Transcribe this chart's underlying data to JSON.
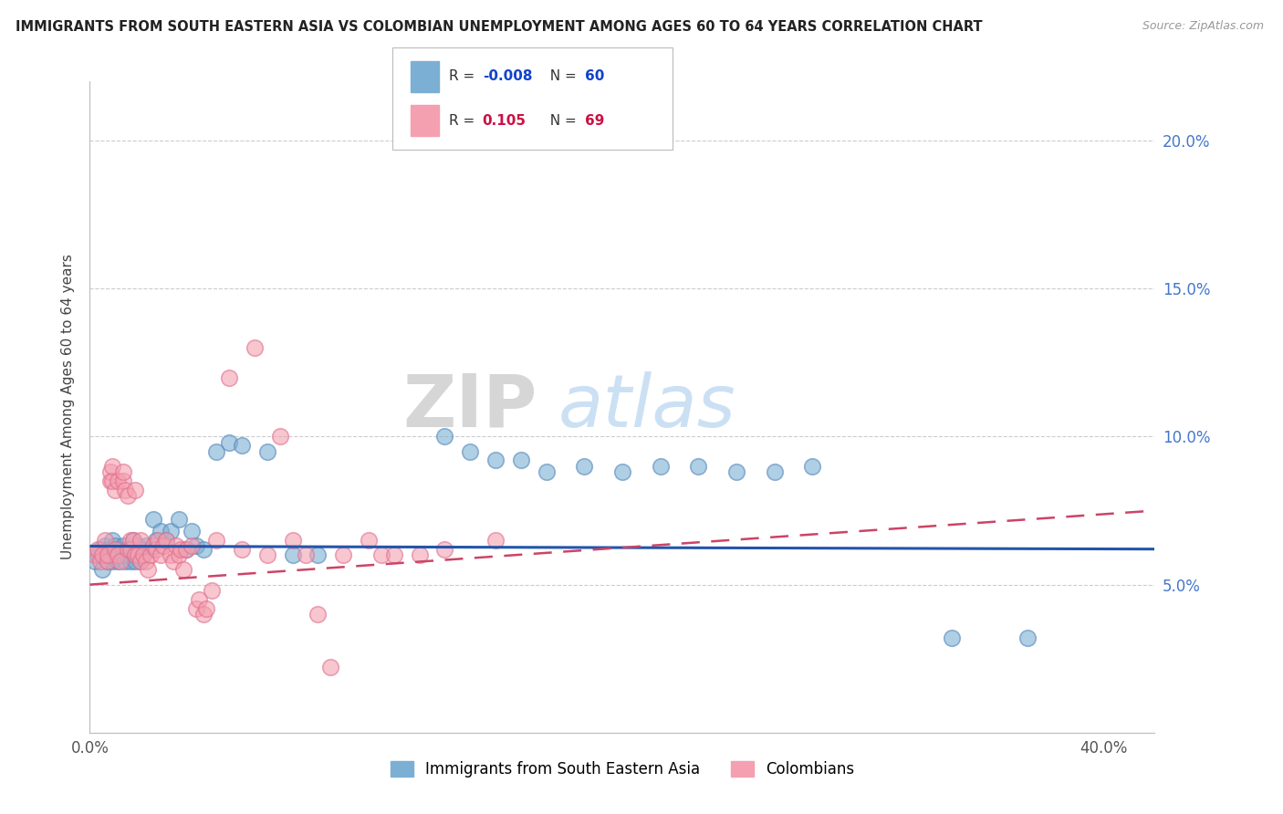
{
  "title": "IMMIGRANTS FROM SOUTH EASTERN ASIA VS COLOMBIAN UNEMPLOYMENT AMONG AGES 60 TO 64 YEARS CORRELATION CHART",
  "source": "Source: ZipAtlas.com",
  "ylabel": "Unemployment Among Ages 60 to 64 years",
  "xlim": [
    0.0,
    0.42
  ],
  "ylim": [
    0.0,
    0.22
  ],
  "ytick_vals": [
    0.05,
    0.1,
    0.15,
    0.2
  ],
  "ytick_labels": [
    "5.0%",
    "10.0%",
    "15.0%",
    "20.0%"
  ],
  "xtick_vals": [
    0.0,
    0.4
  ],
  "xtick_labels": [
    "0.0%",
    "40.0%"
  ],
  "legend_blue_R": "-0.008",
  "legend_blue_N": "60",
  "legend_pink_R": "0.105",
  "legend_pink_N": "69",
  "blue_color": "#7BAFD4",
  "pink_color": "#F4A0B0",
  "blue_edge": "#5588BB",
  "pink_edge": "#E07090",
  "trend_blue_color": "#2255AA",
  "trend_pink_color": "#CC4466",
  "watermark_zip": "ZIP",
  "watermark_atlas": "atlas",
  "blue_scatter_x": [
    0.002,
    0.003,
    0.004,
    0.005,
    0.006,
    0.006,
    0.007,
    0.007,
    0.008,
    0.009,
    0.009,
    0.01,
    0.01,
    0.011,
    0.011,
    0.012,
    0.013,
    0.014,
    0.015,
    0.015,
    0.016,
    0.017,
    0.018,
    0.018,
    0.019,
    0.02,
    0.02,
    0.021,
    0.022,
    0.024,
    0.025,
    0.026,
    0.028,
    0.03,
    0.032,
    0.035,
    0.038,
    0.04,
    0.042,
    0.045,
    0.05,
    0.055,
    0.06,
    0.07,
    0.08,
    0.09,
    0.14,
    0.15,
    0.16,
    0.17,
    0.18,
    0.195,
    0.21,
    0.225,
    0.24,
    0.255,
    0.27,
    0.285,
    0.34,
    0.37
  ],
  "blue_scatter_y": [
    0.058,
    0.06,
    0.062,
    0.055,
    0.06,
    0.063,
    0.058,
    0.062,
    0.06,
    0.058,
    0.065,
    0.06,
    0.063,
    0.058,
    0.062,
    0.06,
    0.063,
    0.058,
    0.06,
    0.062,
    0.058,
    0.065,
    0.06,
    0.058,
    0.063,
    0.058,
    0.062,
    0.06,
    0.063,
    0.062,
    0.072,
    0.065,
    0.068,
    0.065,
    0.068,
    0.072,
    0.062,
    0.068,
    0.063,
    0.062,
    0.095,
    0.098,
    0.097,
    0.095,
    0.06,
    0.06,
    0.1,
    0.095,
    0.092,
    0.092,
    0.088,
    0.09,
    0.088,
    0.09,
    0.09,
    0.088,
    0.088,
    0.09,
    0.032,
    0.032
  ],
  "pink_scatter_x": [
    0.002,
    0.003,
    0.004,
    0.005,
    0.006,
    0.007,
    0.007,
    0.008,
    0.008,
    0.009,
    0.009,
    0.01,
    0.01,
    0.011,
    0.011,
    0.012,
    0.013,
    0.013,
    0.014,
    0.015,
    0.015,
    0.016,
    0.016,
    0.017,
    0.018,
    0.018,
    0.019,
    0.02,
    0.02,
    0.021,
    0.022,
    0.023,
    0.024,
    0.025,
    0.026,
    0.027,
    0.028,
    0.029,
    0.03,
    0.032,
    0.033,
    0.034,
    0.035,
    0.036,
    0.037,
    0.038,
    0.04,
    0.042,
    0.043,
    0.045,
    0.046,
    0.048,
    0.05,
    0.055,
    0.06,
    0.065,
    0.07,
    0.075,
    0.08,
    0.085,
    0.09,
    0.095,
    0.1,
    0.11,
    0.115,
    0.12,
    0.13,
    0.14,
    0.16
  ],
  "pink_scatter_y": [
    0.06,
    0.062,
    0.058,
    0.06,
    0.065,
    0.058,
    0.06,
    0.085,
    0.088,
    0.085,
    0.09,
    0.062,
    0.082,
    0.06,
    0.085,
    0.058,
    0.085,
    0.088,
    0.082,
    0.08,
    0.062,
    0.065,
    0.062,
    0.065,
    0.06,
    0.082,
    0.06,
    0.065,
    0.058,
    0.06,
    0.058,
    0.055,
    0.06,
    0.063,
    0.062,
    0.065,
    0.06,
    0.063,
    0.065,
    0.06,
    0.058,
    0.063,
    0.06,
    0.062,
    0.055,
    0.062,
    0.063,
    0.042,
    0.045,
    0.04,
    0.042,
    0.048,
    0.065,
    0.12,
    0.062,
    0.13,
    0.06,
    0.1,
    0.065,
    0.06,
    0.04,
    0.022,
    0.06,
    0.065,
    0.06,
    0.06,
    0.06,
    0.062,
    0.065
  ],
  "trend_blue_start_y": 0.063,
  "trend_blue_end_y": 0.062,
  "trend_pink_start_y": 0.05,
  "trend_pink_end_y": 0.075
}
